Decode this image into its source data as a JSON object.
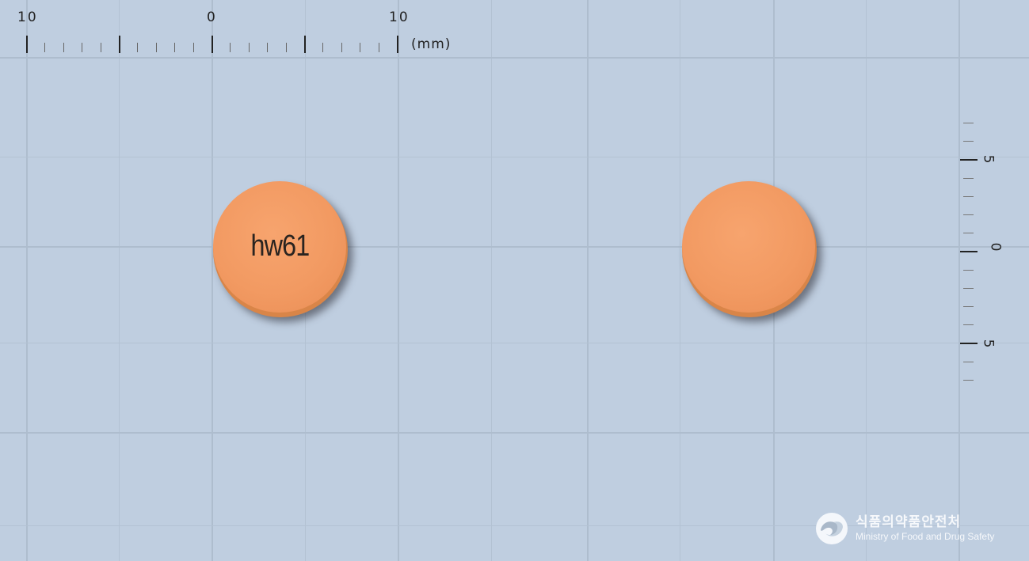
{
  "ruler_top": {
    "labels": [
      "10",
      "0",
      "10"
    ],
    "unit": "(mm)"
  },
  "ruler_right": {
    "labels": [
      "5",
      "0",
      "5"
    ]
  },
  "pills": [
    {
      "side": "front",
      "imprint": "hw61",
      "color": "#f29a62"
    },
    {
      "side": "back",
      "imprint": "",
      "color": "#f29a62"
    }
  ],
  "logo": {
    "korean": "식품의약품안전처",
    "english": "Ministry of Food and Drug Safety",
    "icon": "mfds-emblem-icon"
  }
}
